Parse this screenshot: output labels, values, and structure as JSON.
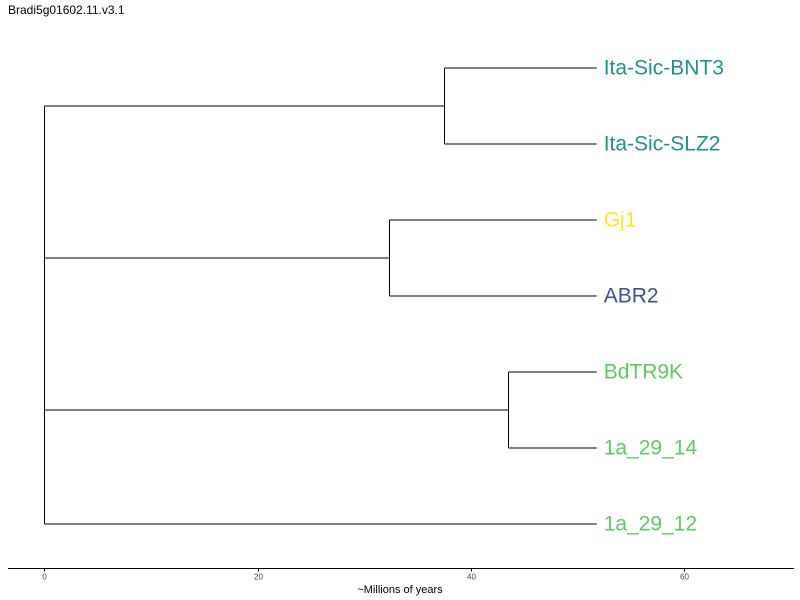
{
  "title": "Bradi5g01602.11.v3.1",
  "chart_data": {
    "type": "dendrogram",
    "title": "Bradi5g01602.11.v3.1",
    "xlabel": "~Millions of years",
    "xlim": [
      -3.4,
      70.3
    ],
    "xticks": [
      0,
      20,
      40,
      60
    ],
    "tips": [
      {
        "name": "Ita-Sic-BNT3",
        "age": 51.8,
        "color": "#21918c"
      },
      {
        "name": "Ita-Sic-SLZ2",
        "age": 51.8,
        "color": "#21918c"
      },
      {
        "name": "Gj1",
        "age": 51.8,
        "color": "#fde725"
      },
      {
        "name": "ABR2",
        "age": 51.8,
        "color": "#3b528b"
      },
      {
        "name": "BdTR9K",
        "age": 51.8,
        "color": "#5ec962"
      },
      {
        "name": "1a_29_14",
        "age": 51.8,
        "color": "#5ec962"
      },
      {
        "name": "1a_29_12",
        "age": 51.8,
        "color": "#5ec962"
      }
    ],
    "clades": [
      {
        "tips": [
          0,
          1
        ],
        "node_x": 37.5
      },
      {
        "tips": [
          2,
          3
        ],
        "node_x": 32.3
      },
      {
        "tips": [
          4,
          5
        ],
        "node_x": 43.5
      },
      {
        "tips": [
          6
        ],
        "node_x": 0
      }
    ],
    "root_x": 0
  }
}
